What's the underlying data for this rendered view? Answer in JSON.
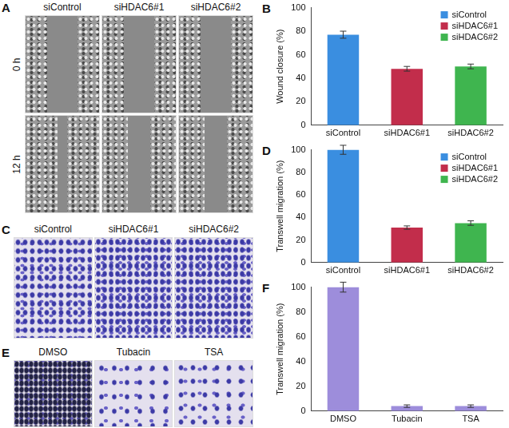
{
  "chart_data": [
    {
      "panel": "B",
      "type": "bar",
      "categories": [
        "siControl",
        "siHDAC6#1",
        "siHDAC6#2"
      ],
      "values": [
        77,
        48,
        50
      ],
      "errors": [
        3,
        2,
        2
      ],
      "colors": [
        "#3a8ee0",
        "#c22d4b",
        "#3fb54f"
      ],
      "ylabel": "Wound closure (%)",
      "ylim": [
        0,
        100
      ],
      "yticks": [
        0,
        20,
        40,
        60,
        80,
        100
      ],
      "grid": false,
      "legend": "upper right"
    },
    {
      "panel": "D",
      "type": "bar",
      "categories": [
        "siControl",
        "siHDAC6#1",
        "siHDAC6#2"
      ],
      "values": [
        100,
        31,
        35
      ],
      "errors": [
        4,
        1.5,
        2
      ],
      "colors": [
        "#3a8ee0",
        "#c22d4b",
        "#3fb54f"
      ],
      "ylabel": "Transwell migration (%)",
      "ylim": [
        0,
        100
      ],
      "yticks": [
        0,
        20,
        40,
        60,
        80,
        100
      ],
      "grid": false,
      "legend": "upper right"
    },
    {
      "panel": "F",
      "type": "bar",
      "categories": [
        "DMSO",
        "Tubacin",
        "TSA"
      ],
      "values": [
        100,
        4,
        4
      ],
      "errors": [
        4,
        1,
        1
      ],
      "color": "#9d8ddb",
      "ylabel": "Transwell migration (%)",
      "ylim": [
        0,
        100
      ],
      "yticks": [
        0,
        20,
        40,
        60,
        80,
        100
      ],
      "grid": false
    }
  ],
  "image_panels": [
    {
      "panel": "A",
      "columns": [
        "siControl",
        "siHDAC6#1",
        "siHDAC6#2"
      ],
      "rows": [
        "0 h",
        "12 h"
      ]
    },
    {
      "panel": "C",
      "columns": [
        "siControl",
        "siHDAC6#1",
        "siHDAC6#2"
      ]
    },
    {
      "panel": "E",
      "columns": [
        "DMSO",
        "Tubacin",
        "TSA"
      ]
    }
  ]
}
